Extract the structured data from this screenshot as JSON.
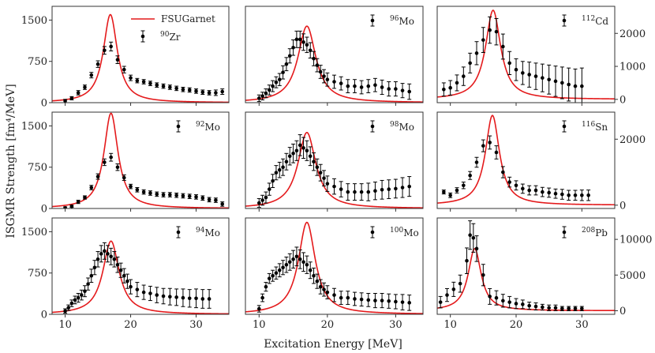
{
  "figure": {
    "xlabel": "Excitation Energy [MeV]",
    "ylabel": "ISGMR Strength [fm⁴/MeV]",
    "legend_model": "FSUGarnet"
  },
  "colors": {
    "model": "#e41a1c",
    "data": "#000000",
    "frame": "#333333"
  },
  "chart_data": [
    {
      "type": "line",
      "nucleus_sup": "90",
      "nucleus_el": "Zr",
      "row": 0,
      "col": 0,
      "xlim": [
        8,
        35
      ],
      "ylim": [
        0,
        1750
      ],
      "yticks": [
        0,
        750,
        1500
      ],
      "ytick_side": "left",
      "show_xticks": false,
      "model": {
        "peak": 16.9,
        "height": 1600,
        "width": 1.3
      },
      "series_data": {
        "x": [
          10,
          11,
          12,
          13,
          14,
          15,
          16,
          17,
          18,
          19,
          20,
          21,
          22,
          23,
          24,
          25,
          26,
          27,
          28,
          29,
          30,
          31,
          32,
          33,
          34
        ],
        "y": [
          30,
          80,
          180,
          280,
          500,
          700,
          950,
          1020,
          780,
          600,
          450,
          400,
          380,
          350,
          320,
          300,
          280,
          260,
          240,
          230,
          210,
          190,
          180,
          180,
          200
        ],
        "err": [
          30,
          30,
          40,
          40,
          50,
          60,
          70,
          80,
          70,
          60,
          50,
          40,
          40,
          40,
          40,
          40,
          40,
          40,
          40,
          40,
          40,
          40,
          40,
          50,
          50
        ]
      }
    },
    {
      "type": "line",
      "nucleus_sup": "96",
      "nucleus_el": "Mo",
      "row": 0,
      "col": 1,
      "xlim": [
        8,
        34
      ],
      "ylim": [
        0,
        1750
      ],
      "yticks": [],
      "ytick_side": "none",
      "show_xticks": false,
      "model": {
        "peak": 17.0,
        "height": 1390,
        "width": 1.6
      },
      "series_data": {
        "x": [
          10,
          10.5,
          11,
          11.5,
          12,
          12.5,
          13,
          13.5,
          14,
          14.5,
          15,
          15.5,
          16,
          16.5,
          17,
          17.5,
          18,
          18.5,
          19,
          19.5,
          20,
          21,
          22,
          23,
          24,
          25,
          26,
          27,
          28,
          29,
          30,
          31,
          32
        ],
        "y": [
          80,
          120,
          170,
          230,
          300,
          370,
          420,
          550,
          700,
          850,
          1000,
          1150,
          1150,
          1100,
          1050,
          950,
          800,
          680,
          560,
          480,
          420,
          380,
          350,
          300,
          300,
          280,
          300,
          320,
          280,
          250,
          250,
          220,
          200
        ],
        "err": [
          60,
          70,
          80,
          90,
          100,
          100,
          110,
          120,
          120,
          130,
          140,
          150,
          150,
          150,
          140,
          140,
          130,
          120,
          120,
          120,
          120,
          120,
          120,
          120,
          120,
          120,
          120,
          120,
          130,
          130,
          130,
          130,
          140
        ]
      }
    },
    {
      "type": "line",
      "nucleus_sup": "112",
      "nucleus_el": "Cd",
      "row": 0,
      "col": 2,
      "xlim": [
        8,
        35
      ],
      "ylim": [
        -100,
        2820
      ],
      "yticks": [
        0,
        1000,
        2000
      ],
      "ytick_side": "right",
      "show_xticks": false,
      "model": {
        "peak": 16.5,
        "height": 2700,
        "width": 1.4
      },
      "series_data": {
        "x": [
          9,
          10,
          11,
          12,
          13,
          14,
          15,
          16,
          17,
          18,
          19,
          20,
          21,
          22,
          23,
          24,
          25,
          26,
          27,
          28,
          29,
          30
        ],
        "y": [
          300,
          350,
          500,
          700,
          1100,
          1400,
          1800,
          2100,
          2050,
          1600,
          1100,
          900,
          800,
          750,
          700,
          650,
          600,
          550,
          500,
          450,
          400,
          400
        ],
        "err": [
          200,
          220,
          240,
          280,
          300,
          350,
          380,
          400,
          400,
          380,
          350,
          330,
          350,
          380,
          400,
          420,
          440,
          460,
          480,
          500,
          520,
          550
        ]
      }
    },
    {
      "type": "line",
      "nucleus_sup": "92",
      "nucleus_el": "Mo",
      "row": 1,
      "col": 0,
      "xlim": [
        8,
        35
      ],
      "ylim": [
        0,
        1750
      ],
      "yticks": [
        0,
        750,
        1500
      ],
      "ytick_side": "left",
      "show_xticks": false,
      "model": {
        "peak": 17.0,
        "height": 1730,
        "width": 1.3
      },
      "series_data": {
        "x": [
          10,
          11,
          12,
          13,
          14,
          15,
          16,
          17,
          18,
          19,
          20,
          21,
          22,
          23,
          24,
          25,
          26,
          27,
          28,
          29,
          30,
          31,
          32,
          33,
          34
        ],
        "y": [
          10,
          40,
          120,
          200,
          380,
          580,
          840,
          930,
          750,
          560,
          400,
          340,
          300,
          280,
          260,
          250,
          250,
          240,
          230,
          220,
          210,
          190,
          160,
          150,
          80
        ],
        "err": [
          20,
          20,
          30,
          30,
          40,
          50,
          60,
          70,
          60,
          50,
          40,
          40,
          40,
          40,
          40,
          40,
          40,
          40,
          40,
          40,
          40,
          40,
          40,
          40,
          40
        ]
      }
    },
    {
      "type": "line",
      "nucleus_sup": "98",
      "nucleus_el": "Mo",
      "row": 1,
      "col": 1,
      "xlim": [
        8,
        34
      ],
      "ylim": [
        0,
        1750
      ],
      "yticks": [],
      "ytick_side": "none",
      "show_xticks": false,
      "model": {
        "peak": 17.0,
        "height": 1380,
        "width": 1.6
      },
      "series_data": {
        "x": [
          10,
          10.5,
          11,
          11.5,
          12,
          12.5,
          13,
          13.5,
          14,
          14.5,
          15,
          15.5,
          16,
          16.5,
          17,
          17.5,
          18,
          18.5,
          19,
          19.5,
          20,
          21,
          22,
          23,
          24,
          25,
          26,
          27,
          28,
          29,
          30,
          31,
          32
        ],
        "y": [
          100,
          150,
          200,
          350,
          500,
          650,
          700,
          750,
          850,
          950,
          1000,
          1050,
          1150,
          1100,
          1050,
          950,
          850,
          750,
          650,
          550,
          450,
          400,
          350,
          300,
          300,
          300,
          300,
          320,
          340,
          350,
          360,
          380,
          400
        ],
        "err": [
          80,
          90,
          100,
          110,
          120,
          130,
          140,
          150,
          150,
          160,
          170,
          180,
          190,
          190,
          180,
          170,
          160,
          150,
          150,
          140,
          140,
          140,
          140,
          150,
          150,
          150,
          160,
          160,
          170,
          170,
          170,
          180,
          180
        ]
      }
    },
    {
      "type": "line",
      "nucleus_sup": "116",
      "nucleus_el": "Sn",
      "row": 1,
      "col": 2,
      "xlim": [
        8,
        35
      ],
      "ylim": [
        -100,
        2820
      ],
      "yticks": [
        0,
        2000
      ],
      "ytick_side": "right",
      "show_xticks": false,
      "model": {
        "peak": 16.4,
        "height": 2720,
        "width": 1.3
      },
      "series_data": {
        "x": [
          9,
          10,
          11,
          12,
          13,
          14,
          15,
          16,
          17,
          18,
          19,
          20,
          21,
          22,
          23,
          24,
          25,
          26,
          27,
          28,
          29,
          30,
          31
        ],
        "y": [
          400,
          300,
          450,
          600,
          900,
          1300,
          1800,
          1900,
          1600,
          1000,
          700,
          600,
          500,
          450,
          450,
          400,
          380,
          350,
          330,
          300,
          300,
          300,
          300
        ],
        "err": [
          60,
          70,
          80,
          100,
          120,
          150,
          180,
          200,
          200,
          170,
          150,
          140,
          140,
          140,
          140,
          140,
          140,
          140,
          150,
          150,
          150,
          160,
          160
        ]
      }
    },
    {
      "type": "line",
      "nucleus_sup": "94",
      "nucleus_el": "Mo",
      "row": 2,
      "col": 0,
      "xlim": [
        8,
        35
      ],
      "ylim": [
        0,
        1750
      ],
      "yticks": [
        0,
        750,
        1500
      ],
      "ytick_side": "left",
      "show_xticks": true,
      "model": {
        "peak": 17.0,
        "height": 1330,
        "width": 1.5
      },
      "series_data": {
        "x": [
          10,
          10.5,
          11,
          11.5,
          12,
          12.5,
          13,
          13.5,
          14,
          14.5,
          15,
          15.5,
          16,
          16.5,
          17,
          17.5,
          18,
          18.5,
          19,
          19.5,
          20,
          21,
          22,
          23,
          24,
          25,
          26,
          27,
          28,
          29,
          30,
          31,
          32
        ],
        "y": [
          60,
          120,
          200,
          260,
          300,
          350,
          420,
          550,
          700,
          850,
          1000,
          1100,
          1150,
          1100,
          1050,
          1000,
          900,
          800,
          700,
          600,
          500,
          450,
          400,
          380,
          350,
          330,
          320,
          310,
          300,
          290,
          290,
          280,
          280
        ],
        "err": [
          40,
          50,
          60,
          70,
          80,
          90,
          100,
          110,
          120,
          130,
          140,
          150,
          150,
          150,
          150,
          140,
          140,
          130,
          130,
          130,
          130,
          130,
          130,
          130,
          140,
          140,
          150,
          150,
          160,
          160,
          170,
          170,
          170
        ]
      }
    },
    {
      "type": "line",
      "nucleus_sup": "100",
      "nucleus_el": "Mo",
      "row": 2,
      "col": 1,
      "xlim": [
        8,
        34
      ],
      "ylim": [
        0,
        1750
      ],
      "yticks": [],
      "ytick_side": "none",
      "show_xticks": true,
      "model": {
        "peak": 17.0,
        "height": 1670,
        "width": 1.5
      },
      "series_data": {
        "x": [
          10,
          10.5,
          11,
          11.5,
          12,
          12.5,
          13,
          13.5,
          14,
          14.5,
          15,
          15.5,
          16,
          16.5,
          17,
          17.5,
          18,
          18.5,
          19,
          19.5,
          20,
          21,
          22,
          23,
          24,
          25,
          26,
          27,
          28,
          29,
          30,
          31,
          32
        ],
        "y": [
          100,
          300,
          500,
          650,
          700,
          750,
          800,
          850,
          900,
          950,
          1000,
          1050,
          1000,
          950,
          900,
          800,
          700,
          600,
          500,
          450,
          400,
          350,
          300,
          300,
          280,
          270,
          260,
          250,
          250,
          240,
          230,
          220,
          210
        ],
        "err": [
          60,
          70,
          80,
          90,
          100,
          110,
          120,
          130,
          140,
          150,
          160,
          170,
          170,
          170,
          160,
          150,
          140,
          130,
          130,
          120,
          120,
          120,
          120,
          120,
          120,
          120,
          120,
          130,
          130,
          130,
          130,
          140,
          140
        ]
      }
    },
    {
      "type": "line",
      "nucleus_sup": "208",
      "nucleus_el": "Pb",
      "row": 2,
      "col": 2,
      "xlim": [
        8,
        35
      ],
      "ylim": [
        -500,
        13000
      ],
      "yticks": [
        0,
        5000,
        10000
      ],
      "ytick_side": "right",
      "show_xticks": true,
      "model": {
        "peak": 13.7,
        "height": 8700,
        "width": 1.2
      },
      "series_data": {
        "x": [
          8.5,
          9.5,
          10.5,
          11.5,
          12.5,
          13,
          13.5,
          14,
          15,
          16,
          17,
          18,
          19,
          20,
          21,
          22,
          23,
          24,
          25,
          26,
          27,
          28,
          29,
          30
        ],
        "y": [
          1200,
          2200,
          3000,
          3800,
          7000,
          10600,
          10200,
          8700,
          5000,
          2000,
          1800,
          1400,
          1200,
          1000,
          900,
          700,
          600,
          500,
          400,
          400,
          300,
          300,
          300,
          300
        ],
        "err": [
          800,
          900,
          1000,
          1200,
          1800,
          2000,
          2000,
          1800,
          1500,
          1100,
          1000,
          900,
          800,
          700,
          600,
          500,
          500,
          400,
          400,
          400,
          300,
          300,
          300,
          300
        ]
      }
    }
  ]
}
